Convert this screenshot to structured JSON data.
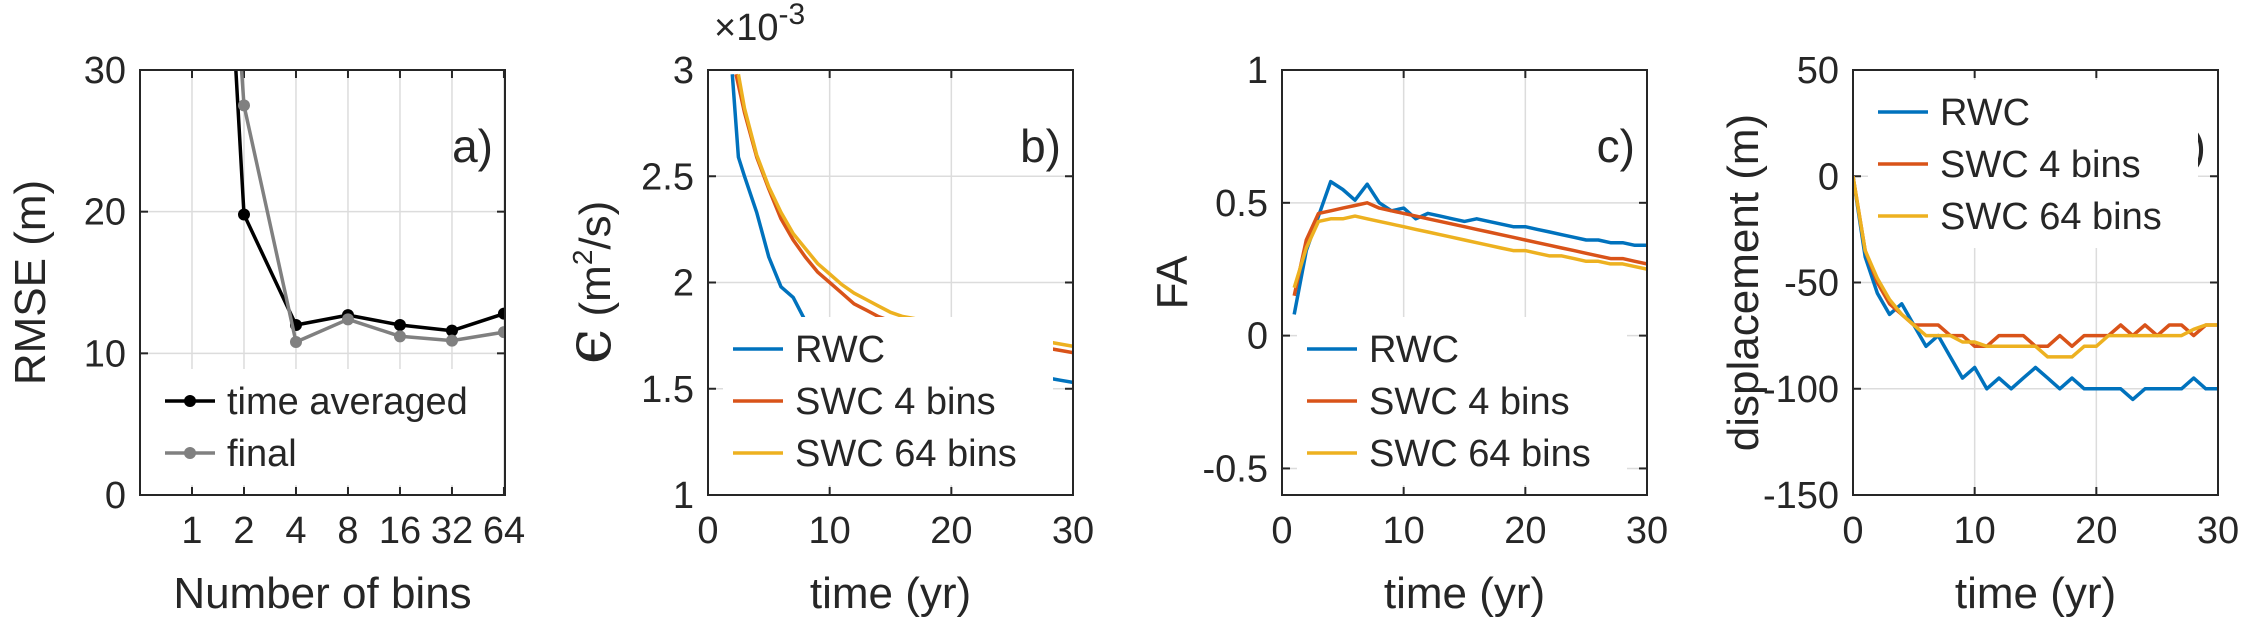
{
  "chart_data": [
    {
      "type": "line",
      "panel_label": "a)",
      "xlabel": "Number of bins",
      "ylabel": "RMSE (m)",
      "x_categories": [
        "1",
        "2",
        "4",
        "8",
        "16",
        "32",
        "64"
      ],
      "yticks": [
        "0",
        "10",
        "20",
        "30"
      ],
      "ylim": [
        0,
        30
      ],
      "grid": true,
      "legend_position": "bottom-left",
      "series": [
        {
          "name": "time averaged",
          "color": "#000000",
          "x": [
            "2",
            "4",
            "8",
            "16",
            "32",
            "64"
          ],
          "y": [
            19.8,
            12.0,
            12.7,
            12.0,
            11.6,
            12.8
          ],
          "enters_from_above_at": 1.8
        },
        {
          "name": "final",
          "color": "#808080",
          "x": [
            "2",
            "4",
            "8",
            "16",
            "32",
            "64"
          ],
          "y": [
            27.5,
            10.8,
            12.4,
            11.2,
            10.9,
            11.5
          ],
          "enters_from_above_at": 1.9
        }
      ]
    },
    {
      "type": "line",
      "panel_label": "b)",
      "xlabel": "time (yr)",
      "ylabel_symbol": "ϵ",
      "ylabel_unit": "(m",
      "ylabel_unit_sup": "2",
      "ylabel_unit_end": "/s)",
      "y_multiplier_base": "×10",
      "y_multiplier_exp": "-3",
      "xticks": [
        "0",
        "10",
        "20",
        "30"
      ],
      "yticks": [
        "1",
        "1.5",
        "2",
        "2.5",
        "3"
      ],
      "xlim": [
        0,
        30
      ],
      "ylim": [
        1,
        3
      ],
      "grid": true,
      "legend_position": "bottom-left",
      "series": [
        {
          "name": "RWC",
          "color": "#0072BD",
          "x": [
            2,
            2.5,
            3,
            4,
            5,
            6,
            7,
            8,
            9,
            10,
            11,
            12,
            13,
            14,
            15,
            16,
            17,
            18,
            19,
            20,
            21,
            22,
            23,
            24,
            25,
            26,
            27,
            28,
            29,
            30
          ],
          "y": [
            2.98,
            2.59,
            2.5,
            2.33,
            2.12,
            1.98,
            1.93,
            1.82,
            1.76,
            1.78,
            1.73,
            1.71,
            1.7,
            1.68,
            1.66,
            1.66,
            1.62,
            1.61,
            1.6,
            1.59,
            1.57,
            1.59,
            1.58,
            1.58,
            1.57,
            1.56,
            1.55,
            1.55,
            1.54,
            1.53
          ]
        },
        {
          "name": "SWC 4 bins",
          "color": "#D95319",
          "x": [
            2.3,
            3,
            4,
            5,
            6,
            7,
            8,
            9,
            10,
            11,
            12,
            13,
            14,
            15,
            16,
            17,
            18,
            19,
            20,
            21,
            22,
            23,
            24,
            25,
            26,
            27,
            28,
            29,
            30
          ],
          "y": [
            2.98,
            2.8,
            2.59,
            2.44,
            2.3,
            2.2,
            2.12,
            2.05,
            2.0,
            1.95,
            1.9,
            1.87,
            1.84,
            1.82,
            1.8,
            1.79,
            1.77,
            1.76,
            1.74,
            1.73,
            1.73,
            1.72,
            1.71,
            1.71,
            1.7,
            1.69,
            1.69,
            1.68,
            1.67
          ]
        },
        {
          "name": "SWC 64 bins",
          "color": "#EDB120",
          "x": [
            2.5,
            3,
            4,
            5,
            6,
            7,
            8,
            9,
            10,
            11,
            12,
            13,
            14,
            15,
            16,
            17,
            18,
            19,
            20,
            21,
            22,
            23,
            24,
            25,
            26,
            27,
            28,
            29,
            30
          ],
          "y": [
            2.98,
            2.82,
            2.6,
            2.45,
            2.33,
            2.23,
            2.16,
            2.09,
            2.04,
            1.99,
            1.95,
            1.92,
            1.89,
            1.86,
            1.84,
            1.83,
            1.81,
            1.8,
            1.78,
            1.77,
            1.76,
            1.75,
            1.75,
            1.74,
            1.73,
            1.72,
            1.72,
            1.71,
            1.7
          ]
        }
      ]
    },
    {
      "type": "line",
      "panel_label": "c)",
      "xlabel": "time (yr)",
      "ylabel": "FA",
      "xticks": [
        "0",
        "10",
        "20",
        "30"
      ],
      "yticks": [
        "-0.5",
        "0",
        "0.5",
        "1"
      ],
      "xlim": [
        0,
        30
      ],
      "ylim": [
        -0.6,
        1
      ],
      "grid": true,
      "legend_position": "bottom-left",
      "series": [
        {
          "name": "RWC",
          "color": "#0072BD",
          "x": [
            1,
            2,
            3,
            4,
            5,
            6,
            7,
            8,
            9,
            10,
            11,
            12,
            13,
            14,
            15,
            16,
            17,
            18,
            19,
            20,
            21,
            22,
            23,
            24,
            25,
            26,
            27,
            28,
            29,
            30
          ],
          "y": [
            0.08,
            0.32,
            0.45,
            0.58,
            0.55,
            0.51,
            0.57,
            0.5,
            0.47,
            0.48,
            0.44,
            0.46,
            0.45,
            0.44,
            0.43,
            0.44,
            0.43,
            0.42,
            0.41,
            0.41,
            0.4,
            0.39,
            0.38,
            0.37,
            0.36,
            0.36,
            0.35,
            0.35,
            0.34,
            0.34
          ]
        },
        {
          "name": "SWC 4 bins",
          "color": "#D95319",
          "x": [
            1,
            2,
            3,
            4,
            5,
            6,
            7,
            8,
            9,
            10,
            11,
            12,
            13,
            14,
            15,
            16,
            17,
            18,
            19,
            20,
            21,
            22,
            23,
            24,
            25,
            26,
            27,
            28,
            29,
            30
          ],
          "y": [
            0.15,
            0.36,
            0.46,
            0.47,
            0.48,
            0.49,
            0.5,
            0.48,
            0.47,
            0.46,
            0.45,
            0.44,
            0.43,
            0.42,
            0.41,
            0.4,
            0.39,
            0.38,
            0.37,
            0.36,
            0.35,
            0.34,
            0.33,
            0.32,
            0.31,
            0.3,
            0.29,
            0.29,
            0.28,
            0.27
          ]
        },
        {
          "name": "SWC 64 bins",
          "color": "#EDB120",
          "x": [
            1,
            2,
            3,
            4,
            5,
            6,
            7,
            8,
            9,
            10,
            11,
            12,
            13,
            14,
            15,
            16,
            17,
            18,
            19,
            20,
            21,
            22,
            23,
            24,
            25,
            26,
            27,
            28,
            29,
            30
          ],
          "y": [
            0.18,
            0.33,
            0.43,
            0.44,
            0.44,
            0.45,
            0.44,
            0.43,
            0.42,
            0.41,
            0.4,
            0.39,
            0.38,
            0.37,
            0.36,
            0.35,
            0.34,
            0.33,
            0.32,
            0.32,
            0.31,
            0.3,
            0.3,
            0.29,
            0.28,
            0.28,
            0.27,
            0.27,
            0.26,
            0.25
          ]
        }
      ]
    },
    {
      "type": "line",
      "panel_label": "d)",
      "xlabel": "time (yr)",
      "ylabel": "displacement (m)",
      "xticks": [
        "0",
        "10",
        "20",
        "30"
      ],
      "yticks": [
        "-150",
        "-100",
        "-50",
        "0",
        "50"
      ],
      "xlim": [
        0,
        30
      ],
      "ylim": [
        -150,
        50
      ],
      "grid": true,
      "legend_position": "top-left",
      "series": [
        {
          "name": "RWC",
          "color": "#0072BD",
          "x": [
            0,
            1,
            2,
            3,
            4,
            5,
            6,
            7,
            8,
            9,
            10,
            11,
            12,
            13,
            14,
            15,
            16,
            17,
            18,
            19,
            20,
            21,
            22,
            23,
            24,
            25,
            26,
            27,
            28,
            29,
            30
          ],
          "y": [
            0,
            -38,
            -55,
            -65,
            -60,
            -70,
            -80,
            -75,
            -85,
            -95,
            -90,
            -100,
            -95,
            -100,
            -95,
            -90,
            -95,
            -100,
            -95,
            -100,
            -100,
            -100,
            -100,
            -105,
            -100,
            -100,
            -100,
            -100,
            -95,
            -100,
            -100
          ]
        },
        {
          "name": "SWC 4 bins",
          "color": "#D95319",
          "x": [
            0,
            1,
            2,
            3,
            4,
            5,
            6,
            7,
            8,
            9,
            10,
            11,
            12,
            13,
            14,
            15,
            16,
            17,
            18,
            19,
            20,
            21,
            22,
            23,
            24,
            25,
            26,
            27,
            28,
            29,
            30
          ],
          "y": [
            0,
            -35,
            -50,
            -60,
            -65,
            -70,
            -70,
            -70,
            -75,
            -75,
            -80,
            -80,
            -75,
            -75,
            -75,
            -80,
            -80,
            -75,
            -80,
            -75,
            -75,
            -75,
            -70,
            -75,
            -70,
            -75,
            -70,
            -70,
            -75,
            -70,
            -70
          ]
        },
        {
          "name": "SWC 64 bins",
          "color": "#EDB120",
          "x": [
            0,
            1,
            2,
            3,
            4,
            5,
            6,
            7,
            8,
            9,
            10,
            11,
            12,
            13,
            14,
            15,
            16,
            17,
            18,
            19,
            20,
            21,
            22,
            23,
            24,
            25,
            26,
            27,
            28,
            29,
            30
          ],
          "y": [
            0,
            -35,
            -48,
            -58,
            -65,
            -70,
            -75,
            -75,
            -75,
            -78,
            -78,
            -80,
            -80,
            -80,
            -80,
            -80,
            -85,
            -85,
            -85,
            -80,
            -80,
            -75,
            -75,
            -75,
            -75,
            -75,
            -75,
            -75,
            -72,
            -70,
            -70
          ]
        }
      ]
    }
  ]
}
